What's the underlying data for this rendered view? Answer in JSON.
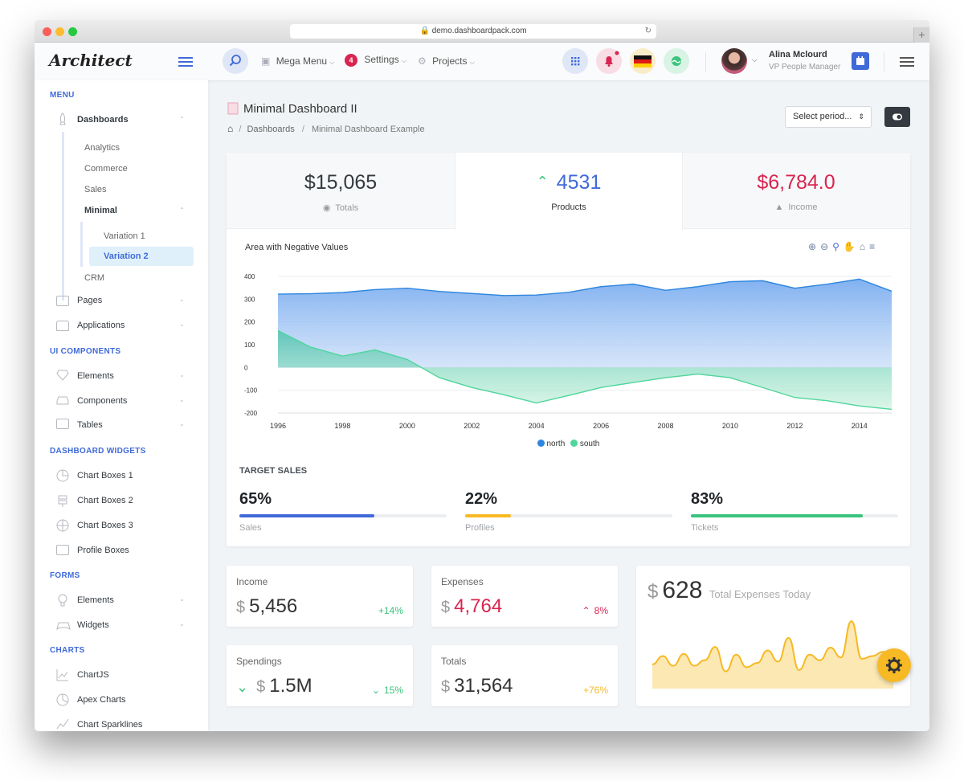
{
  "browser": {
    "url": "demo.dashboardpack.com"
  },
  "header": {
    "logo": "Architect",
    "nav": [
      {
        "label": "Mega Menu"
      },
      {
        "label": "Settings",
        "badge": "4"
      },
      {
        "label": "Projects"
      }
    ],
    "user": {
      "name": "Alina Mclourd",
      "role": "VP People Manager"
    }
  },
  "sidebar": {
    "menu_head": "MENU",
    "dashboards": "Dashboards",
    "dash_subs": [
      "Analytics",
      "Commerce",
      "Sales"
    ],
    "minimal": "Minimal",
    "variation1": "Variation 1",
    "variation2": "Variation 2",
    "crm": "CRM",
    "pages": "Pages",
    "applications": "Applications",
    "ui_head": "UI COMPONENTS",
    "ui_items": [
      "Elements",
      "Components",
      "Tables"
    ],
    "widgets_head": "DASHBOARD WIDGETS",
    "widget_items": [
      "Chart Boxes 1",
      "Chart Boxes 2",
      "Chart Boxes 3",
      "Profile Boxes"
    ],
    "forms_head": "FORMS",
    "form_items": [
      "Elements",
      "Widgets"
    ],
    "charts_head": "CHARTS",
    "chart_items": [
      "ChartJS",
      "Apex Charts",
      "Chart Sparklines"
    ]
  },
  "page": {
    "title": "Minimal Dashboard II",
    "breadcrumb": [
      "Dashboards",
      "Minimal Dashboard Example"
    ],
    "period_select": "Select period..."
  },
  "kpis": [
    {
      "value": "$15,065",
      "label": "Totals"
    },
    {
      "value": "4531",
      "label": "Products"
    },
    {
      "value": "$6,784.0",
      "label": "Income"
    }
  ],
  "colors": {
    "accent": "#3f6ad8",
    "danger": "#d92550",
    "success": "#3ac47d",
    "warning": "#f7b924",
    "north": "#2e86de",
    "south": "#4fd69c"
  },
  "chart_data": {
    "type": "area",
    "title": "Area with Negative Values",
    "x": [
      1996,
      1997,
      1998,
      1999,
      2000,
      2001,
      2002,
      2003,
      2004,
      2005,
      2006,
      2007,
      2008,
      2009,
      2010,
      2011,
      2012,
      2013,
      2014,
      2015
    ],
    "x_ticks": [
      1996,
      1998,
      2000,
      2002,
      2004,
      2006,
      2008,
      2010,
      2012,
      2014
    ],
    "ylim": [
      -200,
      400
    ],
    "y_ticks": [
      400,
      300,
      200,
      100,
      0,
      -100,
      -200
    ],
    "series": [
      {
        "name": "north",
        "values": [
          322,
          324,
          329,
          342,
          348,
          334,
          325,
          316,
          318,
          330,
          355,
          366,
          339,
          355,
          377,
          381,
          348,
          366,
          388,
          335
        ]
      },
      {
        "name": "south",
        "values": [
          162,
          90,
          50,
          77,
          35,
          -45,
          -88,
          -120,
          -156,
          -123,
          -88,
          -66,
          -45,
          -29,
          -45,
          -88,
          -132,
          -146,
          -169,
          -184
        ]
      }
    ],
    "legend": "bottom-center"
  },
  "target_sales": {
    "title": "TARGET SALES",
    "items": [
      {
        "value": "65%",
        "label": "Sales",
        "fraction": 0.65,
        "color": "#3f6ad8"
      },
      {
        "value": "22%",
        "label": "Profiles",
        "fraction": 0.22,
        "color": "#f7b924"
      },
      {
        "value": "83%",
        "label": "Tickets",
        "fraction": 0.83,
        "color": "#3ac47d"
      }
    ]
  },
  "widgets": [
    {
      "label": "Income",
      "currency": "$",
      "value": "5,456",
      "change": "+14%"
    },
    {
      "label": "Expenses",
      "currency": "$",
      "value": "4,764",
      "change": "8%"
    },
    {
      "label": "Spendings",
      "currency": "$",
      "value": "1.5M",
      "change": "15%"
    },
    {
      "label": "Totals",
      "currency": "$",
      "value": "31,564",
      "change": "+76%"
    }
  ],
  "expense_today": {
    "currency": "$",
    "value": "628",
    "label": "Total Expenses Today",
    "sparkline": [
      30,
      42,
      28,
      45,
      28,
      36,
      55,
      20,
      44,
      26,
      32,
      50,
      34,
      68,
      22,
      44,
      36,
      54,
      40,
      92,
      38,
      42,
      48,
      40
    ]
  }
}
